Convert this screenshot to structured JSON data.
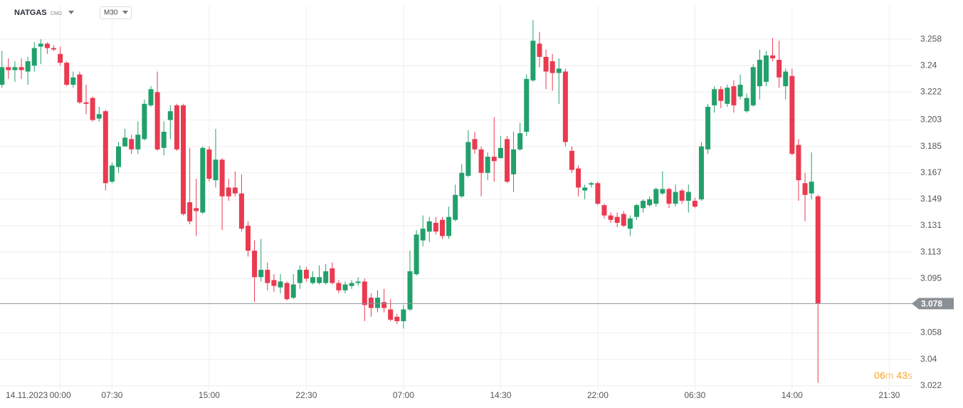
{
  "chart_data": {
    "type": "candlestick",
    "symbol": "NATGAS",
    "symbol_tag": "CMD",
    "timeframe": "M30",
    "date_label": "14.11.2023",
    "up_color": "#22a06b",
    "down_color": "#ea3a50",
    "grid": true,
    "open": [
      3.227,
      3.239,
      3.237,
      3.239,
      3.236,
      3.24,
      3.253,
      3.255,
      3.252,
      3.248,
      3.242,
      3.227,
      3.234,
      3.215,
      3.218,
      3.204,
      3.209,
      3.161,
      3.171,
      3.185,
      3.19,
      3.183,
      3.19,
      3.213,
      3.222,
      3.184,
      3.203,
      3.213,
      3.213,
      3.147,
      3.143,
      3.14,
      3.183,
      3.162,
      3.176,
      3.157,
      3.157,
      3.153,
      3.131,
      3.114,
      3.096,
      3.101,
      3.094,
      3.089,
      3.092,
      3.082,
      3.092,
      3.101,
      3.092,
      3.092,
      3.092,
      3.102,
      3.092,
      3.087,
      3.09,
      3.092,
      3.093,
      3.082,
      3.075,
      3.079,
      3.074,
      3.069,
      3.066,
      3.074,
      3.098,
      3.121,
      3.127,
      3.133,
      3.135,
      3.124,
      3.135,
      3.151,
      3.165,
      3.19,
      3.183,
      3.167,
      3.178,
      3.177,
      3.19,
      3.166,
      3.183,
      3.195,
      3.23,
      3.255,
      3.246,
      3.243,
      3.235,
      3.236,
      3.182,
      3.17,
      3.155,
      3.159,
      3.16,
      3.145,
      3.138,
      3.137,
      3.139,
      3.129,
      3.137,
      3.143,
      3.145,
      3.146,
      3.153,
      3.156,
      3.146,
      3.155,
      3.148,
      3.148,
      3.149,
      3.183,
      3.213,
      3.224,
      3.214,
      3.226,
      3.219,
      3.209,
      3.213,
      3.226,
      3.229,
      3.247,
      3.244,
      3.226,
      3.233,
      3.186,
      3.16,
      3.153,
      3.151
    ],
    "high": [
      3.25,
      3.245,
      3.243,
      3.245,
      3.246,
      3.256,
      3.258,
      3.256,
      3.254,
      3.253,
      3.243,
      3.236,
      3.236,
      3.227,
      3.219,
      3.212,
      3.21,
      3.174,
      3.188,
      3.197,
      3.193,
      3.202,
      3.217,
      3.226,
      3.236,
      3.202,
      3.213,
      3.214,
      3.214,
      3.184,
      3.163,
      3.185,
      3.185,
      3.197,
      3.177,
      3.163,
      3.168,
      3.166,
      3.134,
      3.121,
      3.122,
      3.106,
      3.098,
      3.098,
      3.093,
      3.098,
      3.104,
      3.103,
      3.1,
      3.104,
      3.105,
      3.106,
      3.094,
      3.093,
      3.094,
      3.096,
      3.095,
      3.085,
      3.087,
      3.088,
      3.081,
      3.071,
      3.077,
      3.114,
      3.128,
      3.138,
      3.137,
      3.137,
      3.137,
      3.144,
      3.159,
      3.173,
      3.196,
      3.195,
      3.185,
      3.181,
      3.205,
      3.192,
      3.192,
      3.195,
      3.201,
      3.234,
      3.271,
      3.263,
      3.251,
      3.248,
      3.245,
      3.238,
      3.185,
      3.172,
      3.159,
      3.161,
      3.161,
      3.146,
      3.14,
      3.14,
      3.141,
      3.138,
      3.146,
      3.149,
      3.151,
      3.157,
      3.168,
      3.157,
      3.159,
      3.156,
      3.159,
      3.15,
      3.188,
      3.214,
      3.226,
      3.226,
      3.227,
      3.23,
      3.234,
      3.221,
      3.241,
      3.251,
      3.25,
      3.259,
      3.257,
      3.238,
      3.238,
      3.19,
      3.167,
      3.181,
      3.152
    ],
    "low": [
      3.225,
      3.231,
      3.229,
      3.231,
      3.227,
      3.236,
      3.241,
      3.248,
      3.25,
      3.24,
      3.226,
      3.225,
      3.214,
      3.207,
      3.202,
      3.202,
      3.155,
      3.16,
      3.167,
      3.185,
      3.18,
      3.18,
      3.189,
      3.212,
      3.182,
      3.179,
      3.19,
      3.182,
      3.138,
      3.132,
      3.124,
      3.139,
      3.161,
      3.157,
      3.128,
      3.148,
      3.151,
      3.127,
      3.11,
      3.079,
      3.093,
      3.087,
      3.086,
      3.085,
      3.08,
      3.081,
      3.088,
      3.093,
      3.091,
      3.091,
      3.091,
      3.091,
      3.085,
      3.085,
      3.088,
      3.09,
      3.066,
      3.069,
      3.072,
      3.072,
      3.066,
      3.064,
      3.061,
      3.073,
      3.097,
      3.117,
      3.12,
      3.125,
      3.122,
      3.122,
      3.134,
      3.15,
      3.164,
      3.18,
      3.151,
      3.162,
      3.161,
      3.177,
      3.16,
      3.154,
      3.182,
      3.192,
      3.229,
      3.239,
      3.224,
      3.223,
      3.214,
      3.185,
      3.167,
      3.151,
      3.149,
      3.157,
      3.145,
      3.136,
      3.133,
      3.13,
      3.13,
      3.124,
      3.135,
      3.14,
      3.144,
      3.144,
      3.152,
      3.143,
      3.144,
      3.146,
      3.14,
      3.143,
      3.148,
      3.18,
      3.208,
      3.211,
      3.212,
      3.208,
      3.217,
      3.208,
      3.212,
      3.217,
      3.226,
      3.243,
      3.225,
      3.217,
      3.179,
      3.148,
      3.134,
      3.149,
      3.024
    ],
    "close": [
      3.239,
      3.237,
      3.239,
      3.237,
      3.243,
      3.252,
      3.255,
      3.252,
      3.251,
      3.242,
      3.227,
      3.232,
      3.215,
      3.214,
      3.203,
      3.207,
      3.16,
      3.172,
      3.185,
      3.191,
      3.183,
      3.193,
      3.214,
      3.224,
      3.183,
      3.195,
      3.209,
      3.183,
      3.139,
      3.134,
      3.141,
      3.184,
      3.163,
      3.176,
      3.151,
      3.151,
      3.153,
      3.129,
      3.114,
      3.096,
      3.101,
      3.092,
      3.09,
      3.093,
      3.081,
      3.091,
      3.101,
      3.095,
      3.096,
      3.096,
      3.1,
      3.092,
      3.087,
      3.091,
      3.092,
      3.093,
      3.077,
      3.075,
      3.082,
      3.075,
      3.067,
      3.066,
      3.074,
      3.1,
      3.125,
      3.129,
      3.134,
      3.127,
      3.124,
      3.137,
      3.152,
      3.167,
      3.188,
      3.183,
      3.167,
      3.178,
      3.175,
      3.184,
      3.161,
      3.183,
      3.194,
      3.231,
      3.257,
      3.246,
      3.236,
      3.235,
      3.238,
      3.188,
      3.169,
      3.157,
      3.157,
      3.16,
      3.146,
      3.138,
      3.135,
      3.133,
      3.131,
      3.136,
      3.145,
      3.148,
      3.149,
      3.156,
      3.156,
      3.146,
      3.154,
      3.148,
      3.154,
      3.144,
      3.185,
      3.212,
      3.224,
      3.216,
      3.225,
      3.213,
      3.227,
      3.218,
      3.239,
      3.244,
      3.247,
      3.245,
      3.232,
      3.236,
      3.18,
      3.162,
      3.152,
      3.161,
      3.078
    ],
    "last_price": 3.078,
    "xlim": [
      -0.3,
      140.7
    ],
    "xticks": [
      {
        "value": 9,
        "label": "00:00"
      },
      {
        "value": 17,
        "label": "07:30"
      },
      {
        "value": 32,
        "label": "15:00"
      },
      {
        "value": 47,
        "label": "22:30"
      },
      {
        "value": 62,
        "label": "07:00"
      },
      {
        "value": 77,
        "label": "14:30"
      },
      {
        "value": 92,
        "label": "22:00"
      },
      {
        "value": 107,
        "label": "06:30"
      },
      {
        "value": 122,
        "label": "14:00"
      },
      {
        "value": 137,
        "label": "21:30"
      }
    ],
    "ylim": [
      3.019,
      3.276
    ],
    "yticks": [
      3.022,
      3.04,
      3.058,
      3.095,
      3.113,
      3.131,
      3.149,
      3.167,
      3.185,
      3.203,
      3.222,
      3.24,
      3.258
    ],
    "countdown": {
      "minutes": "06",
      "minutes_unit": "m",
      "seconds": "43",
      "seconds_unit": "s"
    }
  }
}
